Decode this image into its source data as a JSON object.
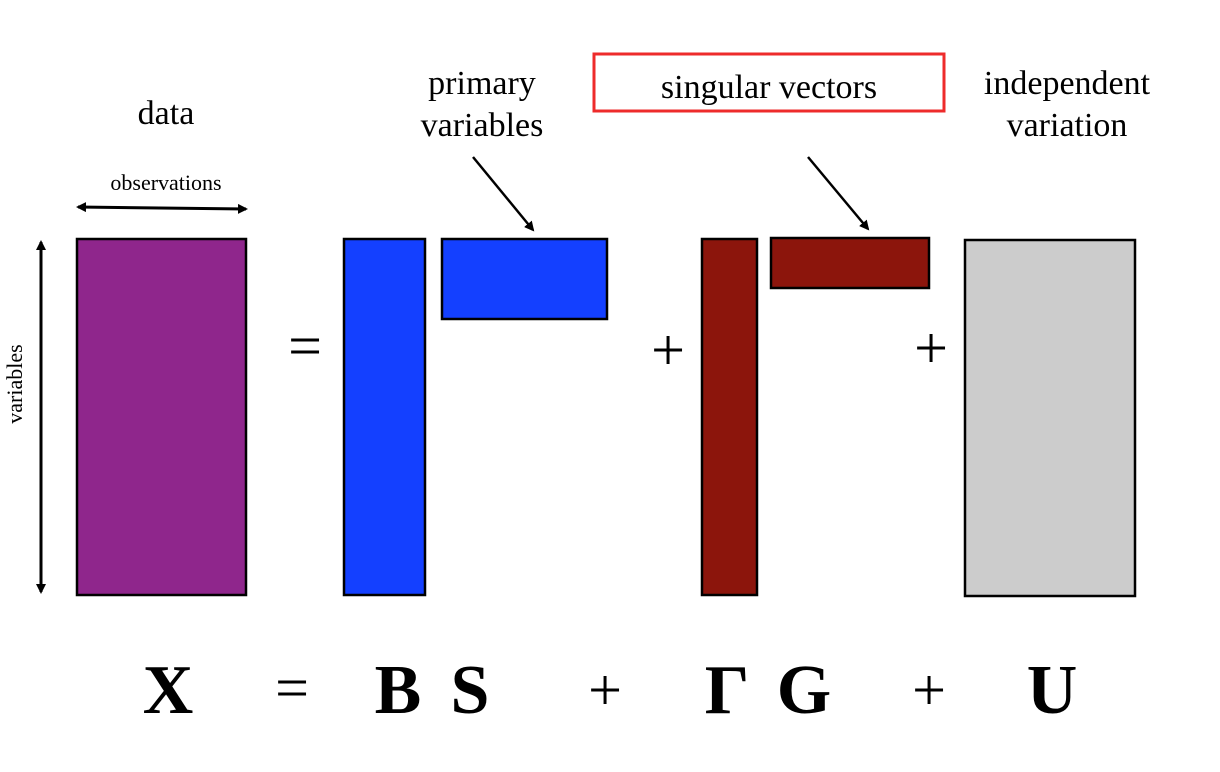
{
  "colors": {
    "data": "#8f268c",
    "primary": "#1440ff",
    "singular": "#8c150c",
    "independent": "#cccccc",
    "highlight": "#ee2b2b",
    "stroke": "#000000"
  },
  "labels": {
    "data": "data",
    "observations": "observations",
    "variables": "variables",
    "primary_line1": "primary",
    "primary_line2": "variables",
    "singular_vectors": "singular vectors",
    "independent_line1": "independent",
    "independent_line2": "variation"
  },
  "operators": {
    "equals": "=",
    "plus": "+"
  },
  "equation": {
    "x": "X",
    "equals": "=",
    "b": "B",
    "s": "S",
    "plus1": "+",
    "gamma": "Γ",
    "g": "G",
    "plus2": "+",
    "u": "U"
  }
}
